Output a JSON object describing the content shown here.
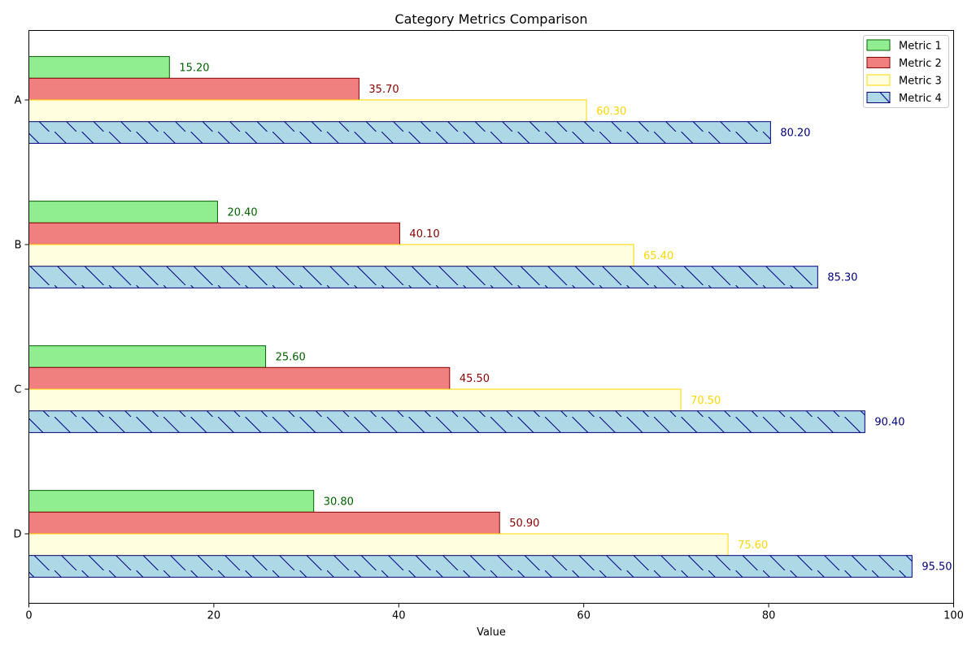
{
  "chart_data": {
    "type": "bar",
    "orientation": "horizontal",
    "title": "Category Metrics Comparison",
    "xlabel": "Value",
    "ylabel": "",
    "xlim": [
      0,
      100
    ],
    "x_ticks": [
      0,
      20,
      40,
      60,
      80,
      100
    ],
    "categories": [
      "A",
      "B",
      "C",
      "D"
    ],
    "series": [
      {
        "name": "Metric 1",
        "values": [
          15.2,
          20.4,
          25.6,
          30.8
        ],
        "labels": [
          "15.20",
          "20.40",
          "25.60",
          "30.80"
        ],
        "fill": "#90ee90",
        "edge": "#006400",
        "label_color": "#006400",
        "hatch": false
      },
      {
        "name": "Metric 2",
        "values": [
          35.7,
          40.1,
          45.5,
          50.9
        ],
        "labels": [
          "35.70",
          "40.10",
          "45.50",
          "50.90"
        ],
        "fill": "#f08080",
        "edge": "#8b0000",
        "label_color": "#8b0000",
        "hatch": false
      },
      {
        "name": "Metric 3",
        "values": [
          60.3,
          65.4,
          70.5,
          75.6
        ],
        "labels": [
          "60.30",
          "65.40",
          "70.50",
          "75.60"
        ],
        "fill": "#ffffe0",
        "edge": "#ffd700",
        "label_color": "#ffd700",
        "hatch": false
      },
      {
        "name": "Metric 4",
        "values": [
          80.2,
          85.3,
          90.4,
          95.5
        ],
        "labels": [
          "80.20",
          "85.30",
          "90.40",
          "95.50"
        ],
        "fill": "#add8e6",
        "edge": "#000080",
        "label_color": "#000080",
        "hatch": true
      }
    ],
    "legend": "top-right",
    "grid": false
  }
}
